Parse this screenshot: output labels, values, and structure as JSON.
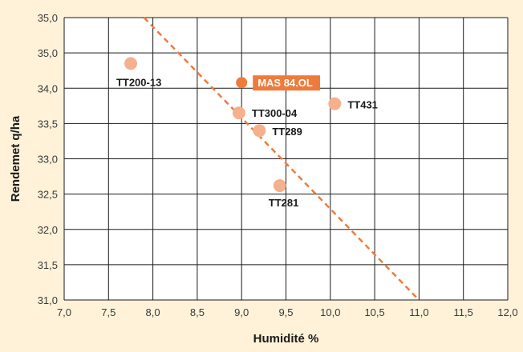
{
  "chart_data": {
    "type": "scatter",
    "xlabel": "Humidité %",
    "ylabel": "Rendemet q/ha",
    "x_ticks": [
      "7,0",
      "7,5",
      "8,0",
      "8,5",
      "9,0",
      "9,5",
      "10,0",
      "10,5",
      "11,0",
      "11,5",
      "12,0"
    ],
    "y_ticks": [
      "31,0",
      "31,5",
      "32,0",
      "32,5",
      "33,0",
      "33,5",
      "34,0",
      "35,0",
      "35,0"
    ],
    "xlim": [
      7.0,
      12.0
    ],
    "ylim": [
      31.0,
      35.0
    ],
    "grid": true,
    "points": [
      {
        "label": "TT200-13",
        "x": 7.75,
        "y": 34.35,
        "highlight": false
      },
      {
        "label": "MAS 84.OL",
        "x": 9.0,
        "y": 34.08,
        "highlight": true
      },
      {
        "label": "TT431",
        "x": 10.05,
        "y": 33.78,
        "highlight": false
      },
      {
        "label": "TT300-04",
        "x": 8.97,
        "y": 33.65,
        "highlight": false
      },
      {
        "label": "TT289",
        "x": 9.2,
        "y": 33.4,
        "highlight": false
      },
      {
        "label": "TT281",
        "x": 9.43,
        "y": 32.62,
        "highlight": false
      }
    ],
    "trendline": {
      "x1": 7.9,
      "y1": 35.0,
      "x2": 11.0,
      "y2": 31.0
    },
    "colors": {
      "background": "#fff2d9",
      "plot_background": "#ffffff",
      "grid": "#1a1a1a",
      "point": "#f5b08e",
      "highlight": "#ee7b3c",
      "trendline": "#ee7b3c"
    }
  }
}
